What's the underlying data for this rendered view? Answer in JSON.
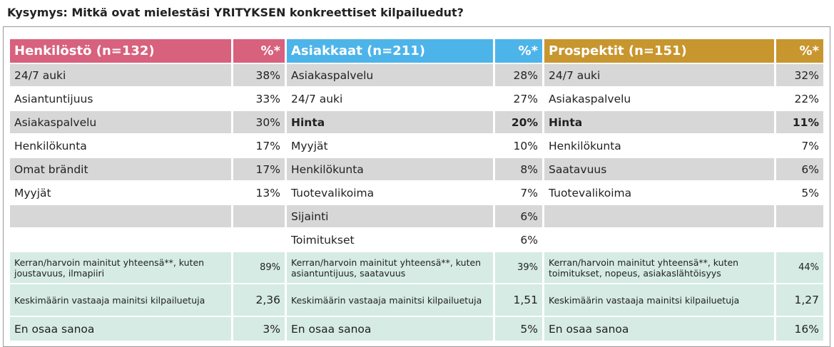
{
  "title": "Kysymys: Mitkä ovat mielestäsi YRITYKSEN konkreettiset kilpailuedut?",
  "groups": [
    {
      "header": "Henkilöstö (n=132)",
      "pct_header": "%*",
      "rows": [
        [
          "24/7 auki",
          "38%"
        ],
        [
          "Asiantuntijuus",
          "33%"
        ],
        [
          "Asiakaspalvelu",
          "30%"
        ],
        [
          "Henkilökunta",
          "17%"
        ],
        [
          "Omat brändit",
          "17%"
        ],
        [
          "Myyjät",
          "13%"
        ]
      ],
      "mentioned": [
        "Kerran/harvoin mainitut yhteensä**, kuten joustavuus, ilmapiiri",
        "89%"
      ],
      "average": [
        "Keskimäärin vastaaja mainitsi kilpailuetuja",
        "2,36"
      ],
      "dont_know": [
        "En osaa sanoa",
        "3%"
      ]
    },
    {
      "header": "Asiakkaat (n=211)",
      "pct_header": "%*",
      "rows": [
        [
          "Asiakaspalvelu",
          "28%"
        ],
        [
          "24/7 auki",
          "27%"
        ],
        [
          "Hinta",
          "20%"
        ],
        [
          "Myyjät",
          "10%"
        ],
        [
          "Henkilökunta",
          "8%"
        ],
        [
          "Tuotevalikoima",
          "7%"
        ],
        [
          "Sijainti",
          "6%"
        ],
        [
          "Toimitukset",
          "6%"
        ]
      ],
      "mentioned": [
        "Kerran/harvoin mainitut yhteensä**, kuten asiantuntijuus, saatavuus",
        "39%"
      ],
      "average": [
        "Keskimäärin vastaaja mainitsi kilpailuetuja",
        "1,51"
      ],
      "dont_know": [
        "En osaa sanoa",
        "5%"
      ]
    },
    {
      "header": "Prospektit (n=151)",
      "pct_header": "%*",
      "rows": [
        [
          "24/7 auki",
          "32%"
        ],
        [
          "Asiakaspalvelu",
          "22%"
        ],
        [
          "Hinta",
          "11%"
        ],
        [
          "Henkilökunta",
          "7%"
        ],
        [
          "Saatavuus",
          "6%"
        ],
        [
          "Tuotevalikoima",
          "5%"
        ]
      ],
      "mentioned": [
        "Kerran/harvoin mainitut yhteensä**, kuten toimitukset, nopeus, asiakaslähtöisyys",
        "44%"
      ],
      "average": [
        "Keskimäärin vastaaja mainitsi kilpailuetuja",
        "1,27"
      ],
      "dont_know": [
        "En osaa sanoa",
        "16%"
      ]
    }
  ]
}
